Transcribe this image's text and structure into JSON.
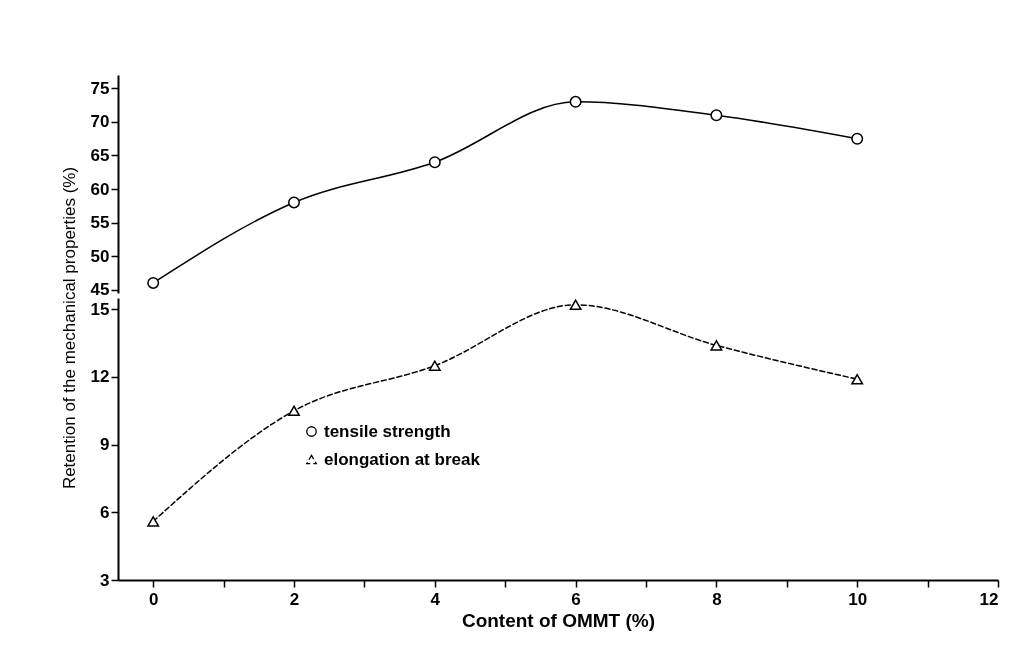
{
  "chart_data": [
    {
      "type": "line",
      "ylabel": "Retention of the mechanical properties (%)",
      "x": [
        0,
        2,
        4,
        6,
        8,
        10
      ],
      "xlim": [
        -0.5,
        12
      ],
      "ylim": [
        44.5,
        77
      ],
      "yticks": [
        45,
        50,
        55,
        60,
        65,
        70,
        75
      ],
      "tick_labels": "y",
      "grid": false,
      "legend": "left",
      "series": [
        {
          "name": "tensile strength",
          "color": "#000000",
          "marker": "circle",
          "line_style": "solid",
          "values": [
            46,
            58,
            64,
            73,
            71,
            67.5
          ]
        }
      ]
    },
    {
      "type": "line",
      "xlabel": "Content of OMMT (%)",
      "x": [
        0,
        2,
        4,
        6,
        8,
        10
      ],
      "xlim": [
        -0.5,
        12
      ],
      "xticks": [
        0,
        {
          "value": 1,
          "label": null
        },
        2,
        {
          "value": 3,
          "label": null
        },
        4,
        {
          "value": 5,
          "label": null
        },
        6,
        {
          "value": 7,
          "label": null
        },
        8,
        {
          "value": 9,
          "label": null
        },
        10,
        {
          "value": 11,
          "label": null
        },
        12
      ],
      "ylim": [
        3,
        15.5
      ],
      "yticks": [
        3,
        6,
        9,
        12,
        15
      ],
      "grid": false,
      "legend": "left",
      "series": [
        {
          "name": "elongation at break",
          "color": "#000000",
          "marker": "triangle",
          "line_style": "dashed",
          "values": [
            5.6,
            10.5,
            12.5,
            15.2,
            13.4,
            11.9
          ]
        }
      ]
    }
  ]
}
